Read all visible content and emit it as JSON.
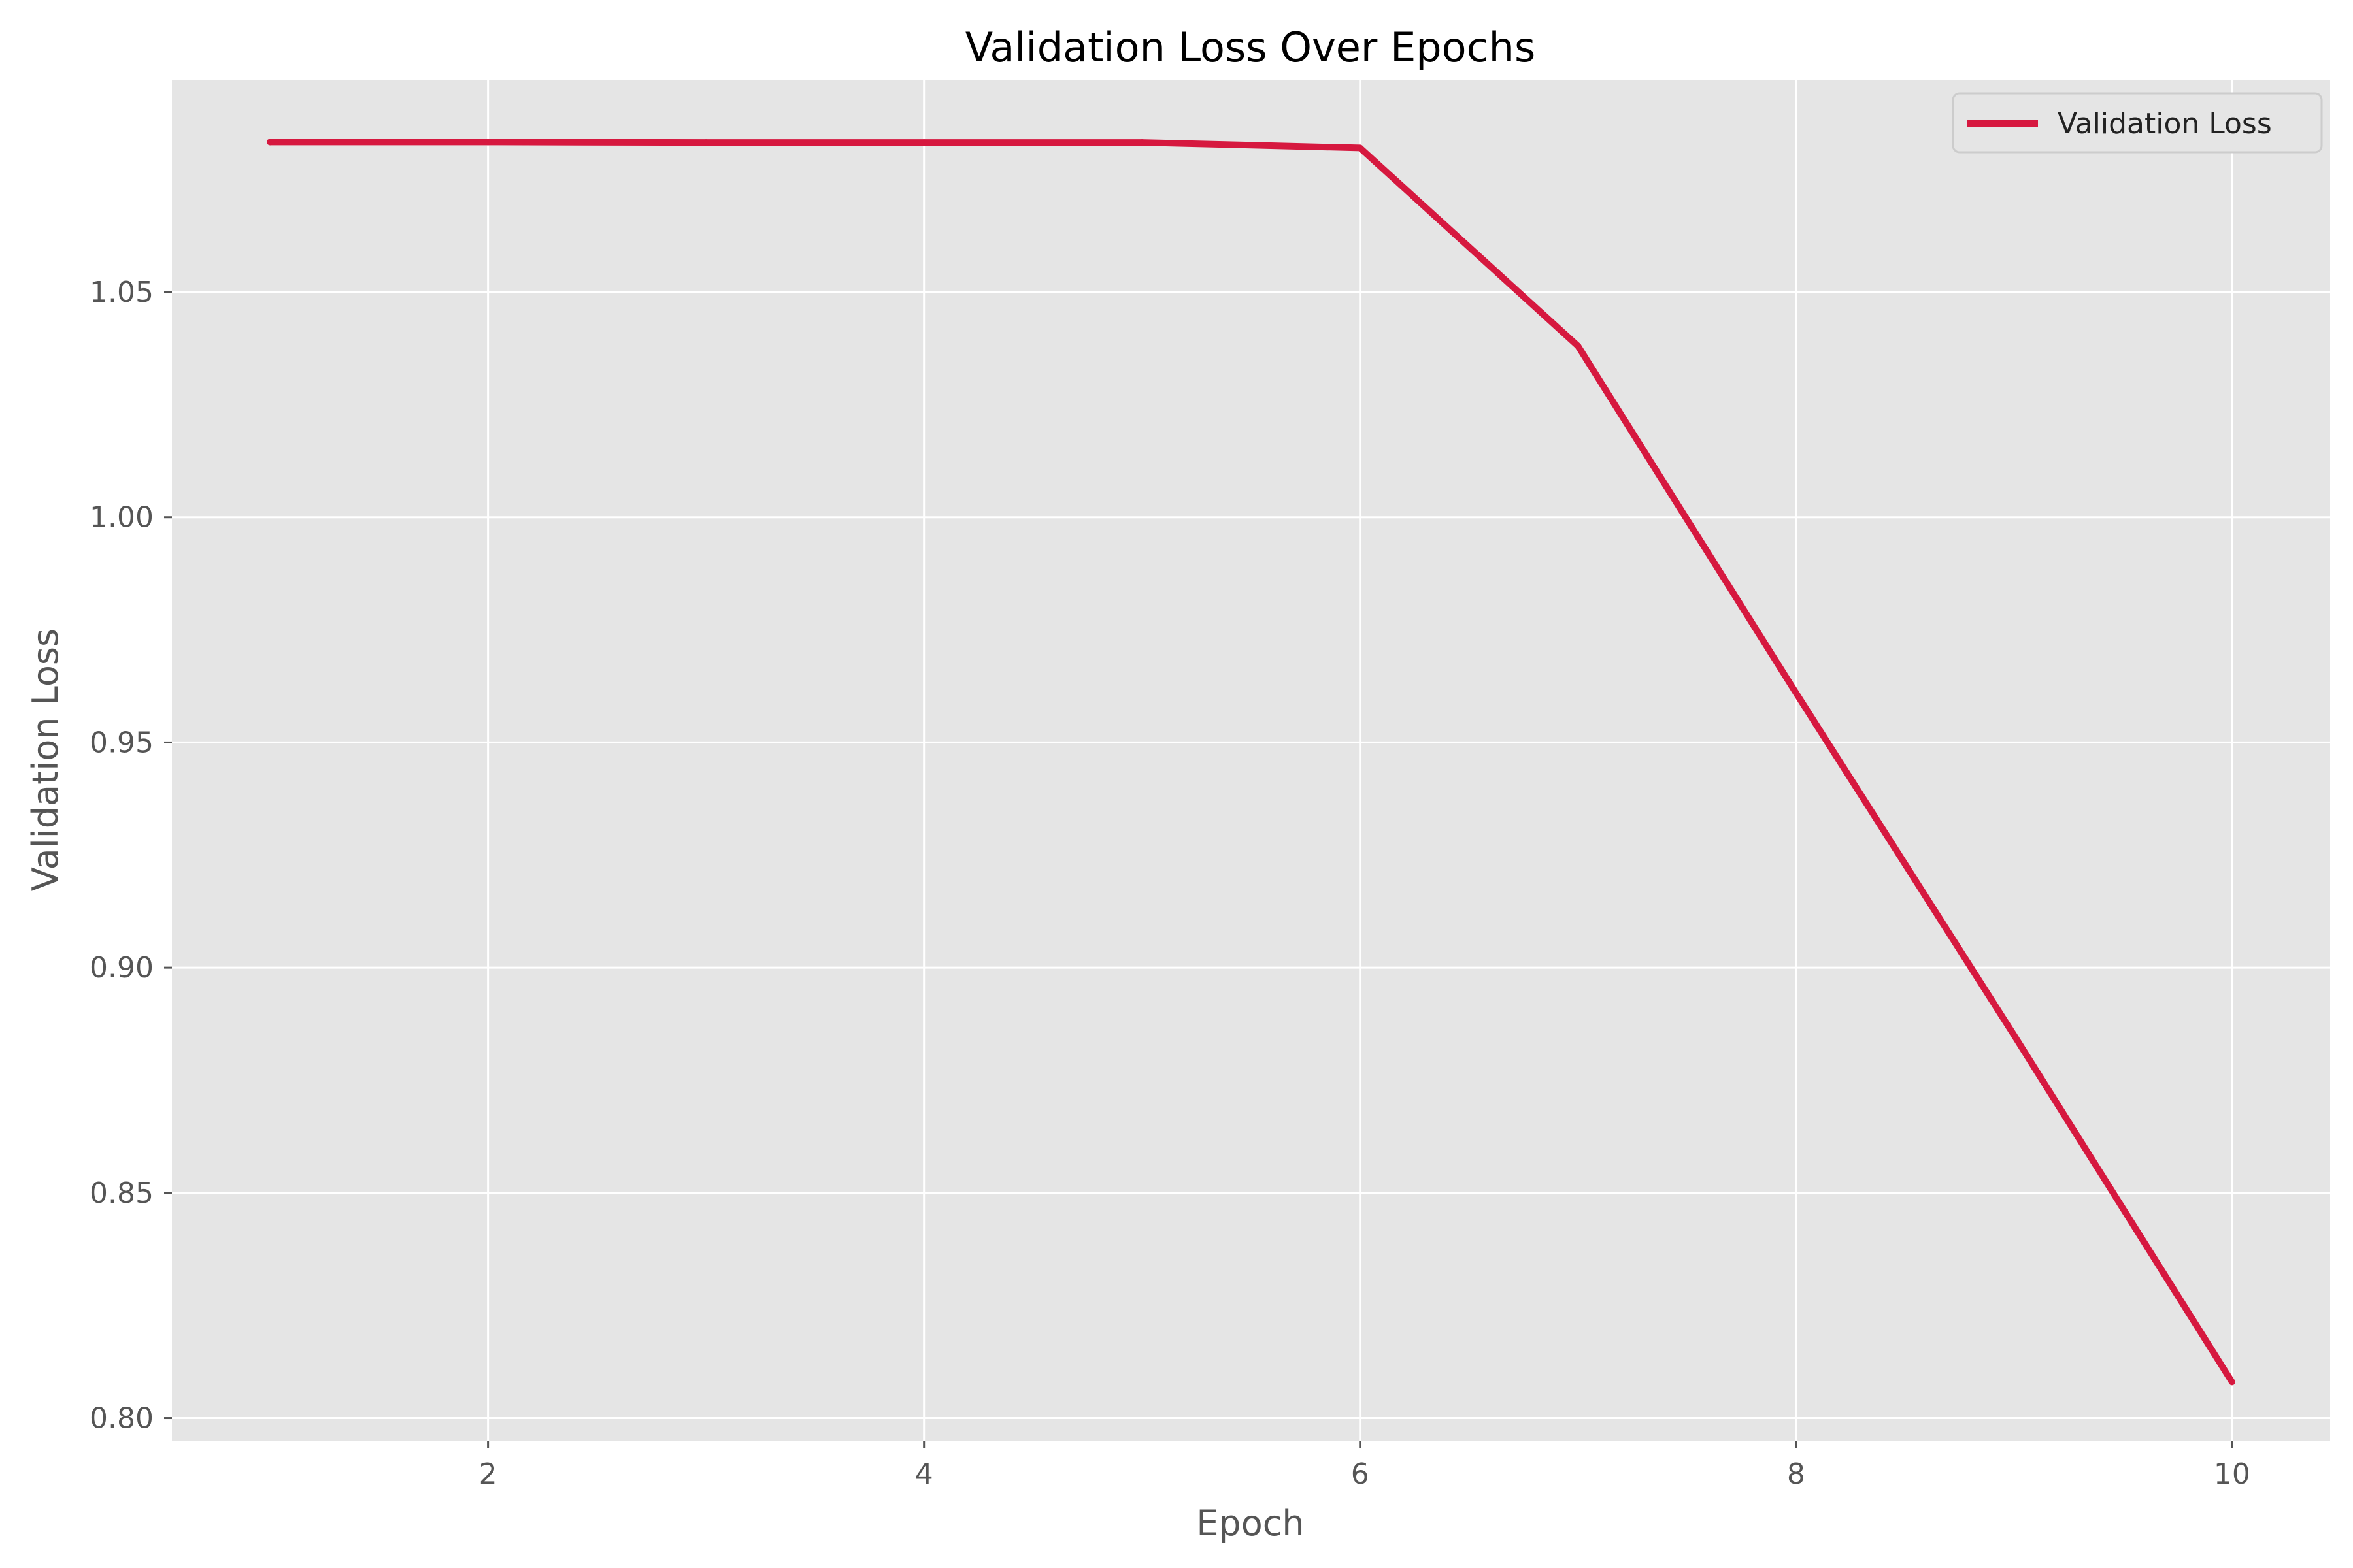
{
  "chart_data": {
    "type": "line",
    "title": "Validation Loss Over Epochs",
    "xlabel": "Epoch",
    "ylabel": "Validation Loss",
    "x": [
      1,
      2,
      3,
      4,
      5,
      6,
      7,
      8,
      9,
      10
    ],
    "series": [
      {
        "name": "Validation Loss",
        "values": [
          1.0833,
          1.0833,
          1.0832,
          1.0832,
          1.0832,
          1.082,
          1.038,
          0.961,
          0.885,
          0.808
        ],
        "color": "#d6183f"
      }
    ],
    "xlim": [
      0.55,
      10.45
    ],
    "ylim": [
      0.795,
      1.097
    ],
    "xticks": [
      2,
      4,
      6,
      8,
      10
    ],
    "xtick_labels": [
      "2",
      "4",
      "6",
      "8",
      "10"
    ],
    "yticks": [
      0.8,
      0.85,
      0.9,
      0.95,
      1.0,
      1.05
    ],
    "ytick_labels": [
      "0.80",
      "0.85",
      "0.90",
      "0.95",
      "1.00",
      "1.05"
    ],
    "grid": true,
    "legend": "upper right",
    "style": {
      "plot_background": "#e5e5e5",
      "grid_color": "#ffffff",
      "tick_color": "#555555"
    }
  }
}
